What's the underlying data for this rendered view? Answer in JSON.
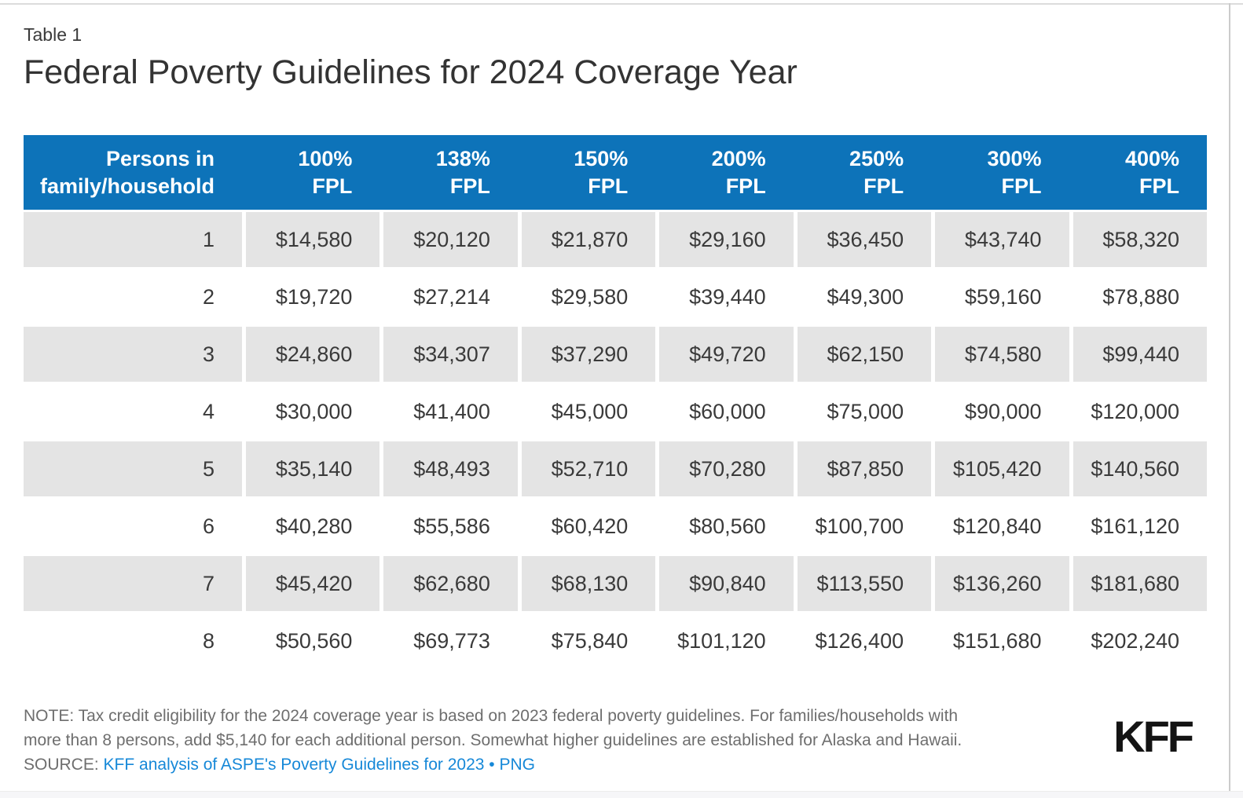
{
  "header": {
    "table_label": "Table 1",
    "title": "Federal Poverty Guidelines for 2024 Coverage Year"
  },
  "chart_data": {
    "type": "table",
    "title": "Federal Poverty Guidelines for 2024 Coverage Year",
    "columns": [
      "Persons in\nfamily/household",
      "100%\nFPL",
      "138%\nFPL",
      "150%\nFPL",
      "200%\nFPL",
      "250%\nFPL",
      "300%\nFPL",
      "400%\nFPL"
    ],
    "rows": [
      {
        "persons": "1",
        "values": [
          "$14,580",
          "$20,120",
          "$21,870",
          "$29,160",
          "$36,450",
          "$43,740",
          "$58,320"
        ]
      },
      {
        "persons": "2",
        "values": [
          "$19,720",
          "$27,214",
          "$29,580",
          "$39,440",
          "$49,300",
          "$59,160",
          "$78,880"
        ]
      },
      {
        "persons": "3",
        "values": [
          "$24,860",
          "$34,307",
          "$37,290",
          "$49,720",
          "$62,150",
          "$74,580",
          "$99,440"
        ]
      },
      {
        "persons": "4",
        "values": [
          "$30,000",
          "$41,400",
          "$45,000",
          "$60,000",
          "$75,000",
          "$90,000",
          "$120,000"
        ]
      },
      {
        "persons": "5",
        "values": [
          "$35,140",
          "$48,493",
          "$52,710",
          "$70,280",
          "$87,850",
          "$105,420",
          "$140,560"
        ]
      },
      {
        "persons": "6",
        "values": [
          "$40,280",
          "$55,586",
          "$60,420",
          "$80,560",
          "$100,700",
          "$120,840",
          "$161,120"
        ]
      },
      {
        "persons": "7",
        "values": [
          "$45,420",
          "$62,680",
          "$68,130",
          "$90,840",
          "$113,550",
          "$136,260",
          "$181,680"
        ]
      },
      {
        "persons": "8",
        "values": [
          "$50,560",
          "$69,773",
          "$75,840",
          "$101,120",
          "$126,400",
          "$151,680",
          "$202,240"
        ]
      }
    ]
  },
  "footer": {
    "note": "NOTE: Tax credit eligibility for the 2024 coverage year is based on 2023 federal poverty guidelines. For families/households with more than 8 persons, add $5,140 for each additional person. Somewhat higher guidelines are established for Alaska and Hawaii.",
    "source_label": "SOURCE:",
    "source_link": "KFF analysis of ASPE's Poverty Guidelines for 2023",
    "source_separator": "•",
    "download_link": "PNG",
    "logo": "KFF"
  },
  "colors": {
    "header_blue": "#0d73b9",
    "row_gray": "#e4e4e4",
    "link_blue": "#1688d8",
    "body_text": "#3a3a3a",
    "note_text": "#6e6e6e"
  }
}
